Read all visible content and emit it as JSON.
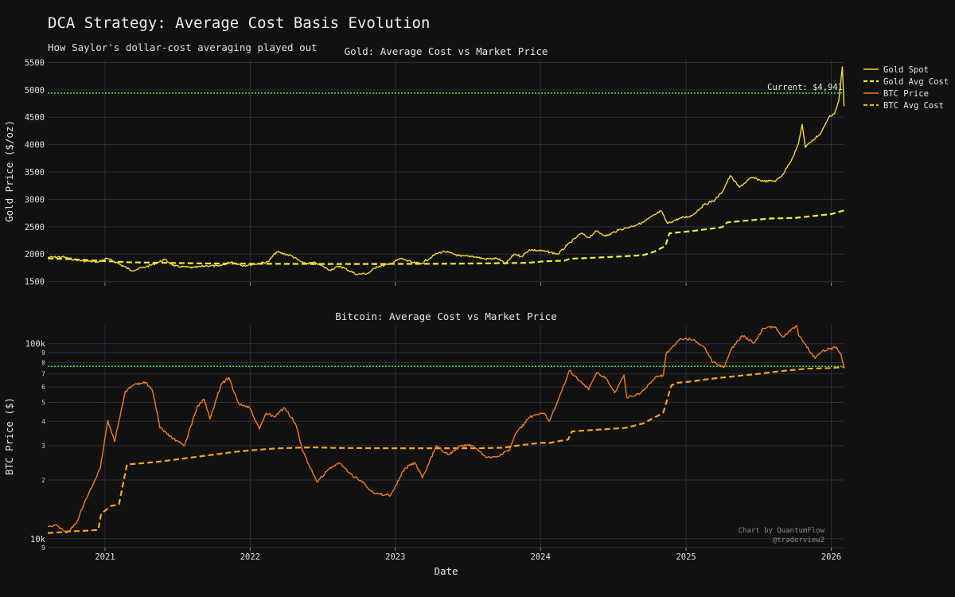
{
  "title": "DCA Strategy: Average Cost Basis Evolution",
  "subtitle": "How Saylor's dollar-cost averaging played out",
  "colors": {
    "background": "#111111",
    "grid": "#273040",
    "gold_spot": "#f5d63a",
    "gold_avg": "#f4ec3c",
    "btc_price": "#f07c20",
    "btc_avg": "#f5a623",
    "current_line": "#2ee83a"
  },
  "legend": {
    "placement": "top-right",
    "items": [
      {
        "label": "Gold Spot",
        "color": "#f5d63a",
        "dash": false
      },
      {
        "label": "Gold Avg Cost",
        "color": "#f4ec3c",
        "dash": true
      },
      {
        "label": "BTC Price",
        "color": "#f07c20",
        "dash": false
      },
      {
        "label": "BTC Avg Cost",
        "color": "#f5a623",
        "dash": true
      }
    ]
  },
  "watermark": {
    "line1": "Chart by QuantumFlow",
    "line2": "@traderview2"
  },
  "chart_data": [
    {
      "type": "line",
      "title": "Gold: Average Cost vs Market Price",
      "xlabel": "",
      "ylabel": "Gold Price ($/oz)",
      "xlim": [
        "2020-08-10",
        "2026-02-03"
      ],
      "ylim": [
        1480,
        5550
      ],
      "yscale": "linear",
      "y_ticks": [
        1500,
        2000,
        2500,
        3000,
        3500,
        4000,
        4500,
        5000,
        5500
      ],
      "grid": true,
      "reference_line": {
        "y": 4941,
        "label": "Current: $4,941"
      },
      "series": [
        {
          "name": "Gold Spot",
          "style": "solid",
          "x": [
            "2020-08-10",
            "2020-09-15",
            "2020-10-15",
            "2020-11-15",
            "2020-12-15",
            "2021-01-05",
            "2021-02-01",
            "2021-03-08",
            "2021-04-15",
            "2021-05-15",
            "2021-06-01",
            "2021-06-25",
            "2021-08-10",
            "2021-09-15",
            "2021-10-15",
            "2021-11-15",
            "2021-12-15",
            "2022-01-15",
            "2022-02-15",
            "2022-03-08",
            "2022-04-15",
            "2022-05-15",
            "2022-06-15",
            "2022-07-20",
            "2022-08-15",
            "2022-09-26",
            "2022-10-25",
            "2022-11-15",
            "2022-12-15",
            "2023-01-15",
            "2023-02-15",
            "2023-03-08",
            "2023-04-15",
            "2023-05-04",
            "2023-06-15",
            "2023-07-15",
            "2023-08-15",
            "2023-09-15",
            "2023-10-05",
            "2023-10-27",
            "2023-11-15",
            "2023-12-04",
            "2024-01-15",
            "2024-02-14",
            "2024-03-08",
            "2024-04-12",
            "2024-05-01",
            "2024-05-20",
            "2024-06-15",
            "2024-07-15",
            "2024-08-15",
            "2024-09-15",
            "2024-10-30",
            "2024-11-15",
            "2024-12-15",
            "2025-01-15",
            "2025-02-15",
            "2025-03-15",
            "2025-04-02",
            "2025-04-22",
            "2025-05-15",
            "2025-06-15",
            "2025-07-15",
            "2025-08-15",
            "2025-09-01",
            "2025-09-25",
            "2025-10-10",
            "2025-10-20",
            "2025-10-28",
            "2025-11-15",
            "2025-12-05",
            "2025-12-26",
            "2026-01-10",
            "2026-01-20",
            "2026-01-29",
            "2026-02-02"
          ],
          "values": [
            1940,
            1950,
            1900,
            1870,
            1860,
            1920,
            1840,
            1700,
            1770,
            1850,
            1900,
            1780,
            1750,
            1790,
            1780,
            1860,
            1790,
            1820,
            1860,
            2040,
            1970,
            1830,
            1840,
            1710,
            1780,
            1630,
            1650,
            1770,
            1810,
            1920,
            1840,
            1830,
            2010,
            2050,
            1960,
            1960,
            1910,
            1920,
            1820,
            2000,
            1960,
            2080,
            2050,
            2000,
            2160,
            2380,
            2300,
            2420,
            2330,
            2440,
            2500,
            2580,
            2790,
            2560,
            2650,
            2700,
            2900,
            2990,
            3140,
            3430,
            3220,
            3400,
            3330,
            3340,
            3450,
            3750,
            4000,
            4370,
            3950,
            4080,
            4200,
            4500,
            4580,
            4800,
            5420,
            4700
          ]
        },
        {
          "name": "Gold Avg Cost",
          "style": "dashed",
          "x": [
            "2020-08-10",
            "2020-10-01",
            "2020-12-15",
            "2021-03-01",
            "2021-06-01",
            "2021-09-01",
            "2022-01-01",
            "2022-06-01",
            "2022-12-01",
            "2023-06-01",
            "2023-12-01",
            "2024-01-10",
            "2024-03-01",
            "2024-03-15",
            "2024-07-01",
            "2024-09-15",
            "2024-10-15",
            "2024-11-10",
            "2024-11-20",
            "2025-01-15",
            "2025-04-01",
            "2025-04-15",
            "2025-08-01",
            "2025-10-01",
            "2026-01-01",
            "2026-02-03"
          ],
          "values": [
            1920,
            1910,
            1880,
            1850,
            1840,
            1830,
            1825,
            1820,
            1820,
            1825,
            1840,
            1870,
            1880,
            1915,
            1950,
            1980,
            2050,
            2150,
            2380,
            2420,
            2490,
            2580,
            2650,
            2660,
            2730,
            2800
          ]
        }
      ]
    },
    {
      "type": "line",
      "title": "Bitcoin: Average Cost vs Market Price",
      "xlabel": "Date",
      "ylabel": "BTC Price ($)",
      "xlim": [
        "2020-08-10",
        "2026-02-03"
      ],
      "ylim": [
        9000,
        125000
      ],
      "yscale": "log",
      "y_tick_labels": {
        "10000": "10k",
        "100000": "100k",
        "9000": "9",
        "20000": "2",
        "30000": "3",
        "40000": "4",
        "50000": "5",
        "60000": "6",
        "70000": "7",
        "80000": "8",
        "90000": "9"
      },
      "x_ticks": [
        "2021",
        "2022",
        "2023",
        "2024",
        "2025",
        "2026"
      ],
      "grid": true,
      "reference_line": {
        "y": 76500,
        "label": ""
      },
      "series": [
        {
          "name": "BTC Price",
          "style": "solid",
          "x": [
            "2020-08-10",
            "2020-09-01",
            "2020-09-25",
            "2020-10-20",
            "2020-11-10",
            "2020-11-28",
            "2020-12-20",
            "2021-01-08",
            "2021-01-25",
            "2021-02-21",
            "2021-03-13",
            "2021-04-14",
            "2021-05-01",
            "2021-05-19",
            "2021-06-22",
            "2021-07-20",
            "2021-08-20",
            "2021-09-07",
            "2021-09-22",
            "2021-10-20",
            "2021-11-08",
            "2021-12-04",
            "2021-12-30",
            "2022-01-24",
            "2022-02-10",
            "2022-03-03",
            "2022-03-28",
            "2022-04-25",
            "2022-05-12",
            "2022-06-18",
            "2022-07-15",
            "2022-08-13",
            "2022-09-10",
            "2022-10-15",
            "2022-11-09",
            "2022-12-20",
            "2023-01-25",
            "2023-02-20",
            "2023-03-10",
            "2023-04-14",
            "2023-05-15",
            "2023-06-15",
            "2023-07-15",
            "2023-08-18",
            "2023-09-15",
            "2023-10-15",
            "2023-10-30",
            "2023-12-05",
            "2024-01-10",
            "2024-01-23",
            "2024-02-15",
            "2024-03-14",
            "2024-05-01",
            "2024-05-21",
            "2024-06-15",
            "2024-07-05",
            "2024-07-29",
            "2024-08-05",
            "2024-09-06",
            "2024-10-15",
            "2024-11-05",
            "2024-11-12",
            "2024-12-17",
            "2025-01-20",
            "2025-02-15",
            "2025-03-10",
            "2025-04-07",
            "2025-04-25",
            "2025-05-22",
            "2025-06-22",
            "2025-07-14",
            "2025-08-13",
            "2025-09-01",
            "2025-10-06",
            "2025-10-11",
            "2025-11-21",
            "2025-12-10",
            "2026-01-14",
            "2026-01-25",
            "2026-02-03"
          ],
          "values": [
            11600,
            11800,
            10700,
            11900,
            15300,
            18200,
            23000,
            40500,
            31500,
            57000,
            61000,
            63500,
            57000,
            37000,
            32500,
            30000,
            47000,
            52000,
            41000,
            62000,
            67000,
            49000,
            47000,
            36500,
            44000,
            42000,
            47000,
            39000,
            28500,
            19500,
            22500,
            24500,
            21500,
            19200,
            17000,
            16700,
            23000,
            24500,
            20500,
            30000,
            27000,
            30000,
            30000,
            26000,
            26500,
            28500,
            34500,
            42000,
            44000,
            40000,
            52000,
            73000,
            58000,
            71000,
            66000,
            56000,
            69000,
            53000,
            55000,
            67000,
            69000,
            89000,
            106000,
            105000,
            96000,
            80000,
            76000,
            94000,
            110000,
            101000,
            120000,
            122000,
            108000,
            124000,
            110000,
            84000,
            92000,
            96000,
            89000,
            75000
          ]
        },
        {
          "name": "BTC Avg Cost",
          "style": "dashed",
          "x": [
            "2020-08-10",
            "2020-09-13",
            "2020-10-01",
            "2020-11-20",
            "2020-12-15",
            "2020-12-22",
            "2021-01-15",
            "2021-02-05",
            "2021-02-25",
            "2021-05-15",
            "2021-09-01",
            "2021-12-01",
            "2022-03-01",
            "2022-05-01",
            "2022-06-15",
            "2022-08-01",
            "2022-12-01",
            "2023-06-01",
            "2023-08-01",
            "2023-10-01",
            "2023-11-01",
            "2024-01-01",
            "2024-01-25",
            "2024-02-10",
            "2024-03-10",
            "2024-03-20",
            "2024-05-20",
            "2024-08-01",
            "2024-09-15",
            "2024-10-15",
            "2024-10-25",
            "2024-11-05",
            "2024-11-25",
            "2024-12-10",
            "2025-01-15",
            "2025-03-01",
            "2025-05-01",
            "2025-07-01",
            "2025-09-01",
            "2025-11-01",
            "2026-01-01",
            "2026-02-03"
          ],
          "values": [
            10700,
            10800,
            10900,
            11000,
            11100,
            13400,
            14700,
            15000,
            24000,
            24800,
            26500,
            28000,
            29000,
            29300,
            29400,
            29200,
            29100,
            29100,
            29100,
            29300,
            30000,
            31000,
            31000,
            31500,
            32200,
            35500,
            36200,
            37000,
            39000,
            42000,
            43000,
            44500,
            61000,
            63000,
            64000,
            66000,
            68000,
            70000,
            72500,
            74500,
            75000,
            76000
          ]
        }
      ]
    }
  ]
}
